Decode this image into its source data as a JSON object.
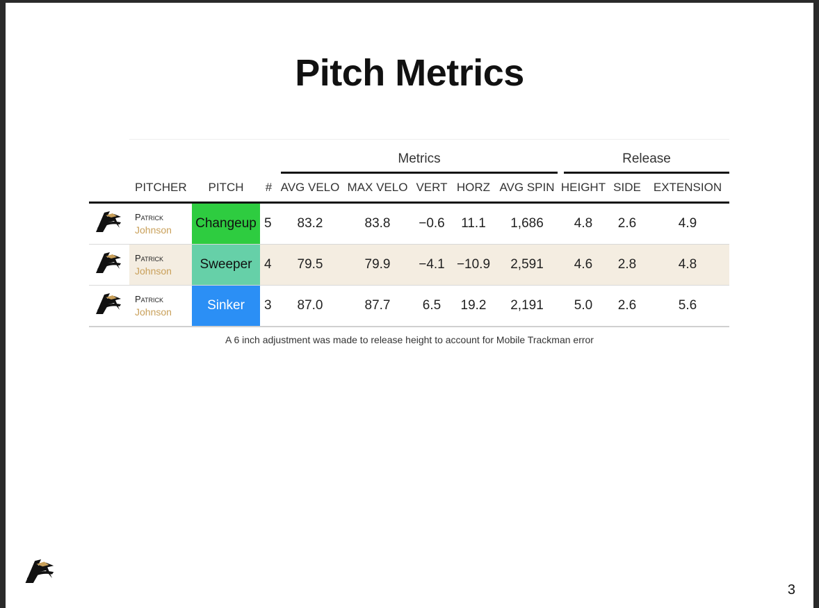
{
  "title": "Pitch Metrics",
  "groups": {
    "metrics": "Metrics",
    "release": "Release"
  },
  "columns": {
    "pitcher": "PITCHER",
    "pitch": "PITCH",
    "count": "#",
    "avg_velo": "AVG VELO",
    "max_velo": "MAX VELO",
    "vert": "VERT",
    "horz": "HORZ",
    "avg_spin": "AVG SPIN",
    "height": "HEIGHT",
    "side": "SIDE",
    "extension": "EXTENSION"
  },
  "rows": [
    {
      "first": "Patrick",
      "last": "Johnson",
      "pitch": "Changeup",
      "pitch_color": "#2ecc40",
      "count": "5",
      "avg_velo": "83.2",
      "max_velo": "83.8",
      "vert": "−0.6",
      "horz": "11.1",
      "avg_spin": "1,686",
      "height": "4.8",
      "side": "2.6",
      "extension": "4.9"
    },
    {
      "first": "Patrick",
      "last": "Johnson",
      "pitch": "Sweeper",
      "pitch_color": "#66d0a8",
      "count": "4",
      "avg_velo": "79.5",
      "max_velo": "79.9",
      "vert": "−4.1",
      "horz": "−10.9",
      "avg_spin": "2,591",
      "height": "4.6",
      "side": "2.8",
      "extension": "4.8"
    },
    {
      "first": "Patrick",
      "last": "Johnson",
      "pitch": "Sinker",
      "pitch_color": "#2b8ff5",
      "count": "3",
      "avg_velo": "87.0",
      "max_velo": "87.7",
      "vert": "6.5",
      "horz": "19.2",
      "avg_spin": "2,191",
      "height": "5.0",
      "side": "2.6",
      "extension": "5.6"
    }
  ],
  "note": "A 6 inch adjustment was made to release height to account for Mobile Trackman error",
  "page_number": "3",
  "icons": {
    "team_logo": "team-logo-icon"
  }
}
